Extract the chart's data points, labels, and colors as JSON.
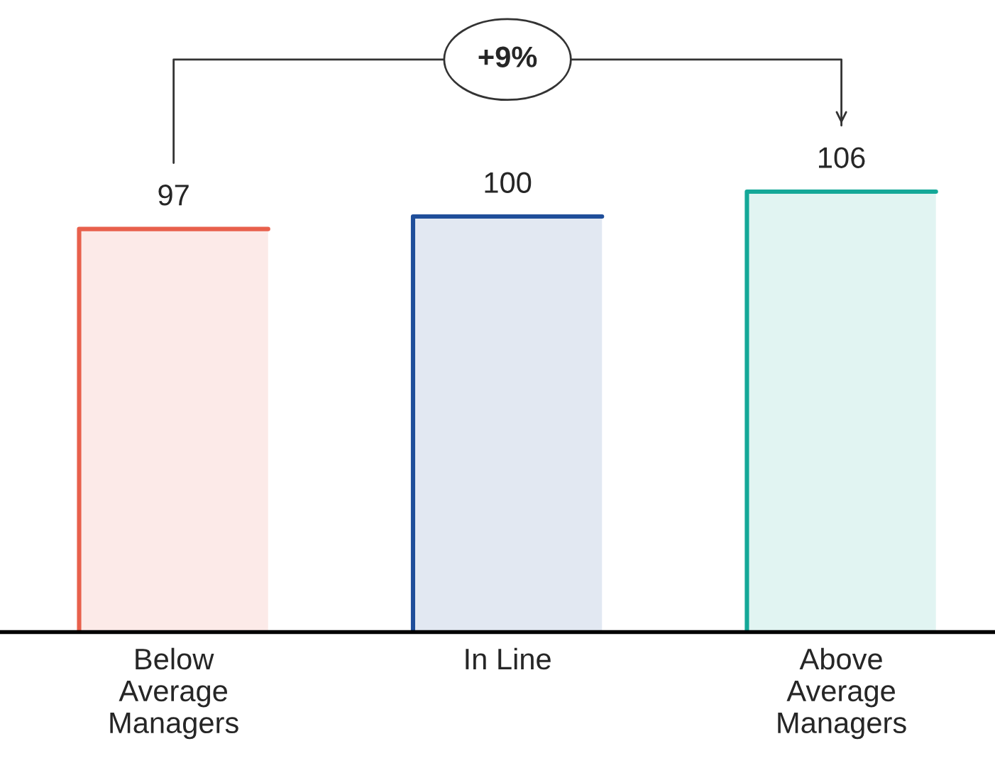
{
  "chart_data": {
    "type": "bar",
    "categories": [
      "Below\nAverage\nManagers",
      "In Line",
      "Above\nAverage\nManagers"
    ],
    "values": [
      97,
      100,
      106
    ],
    "colors": [
      "#e8604c",
      "#1f4e9a",
      "#14a898"
    ],
    "data_labels": true,
    "annotations": [
      "+9%"
    ]
  }
}
